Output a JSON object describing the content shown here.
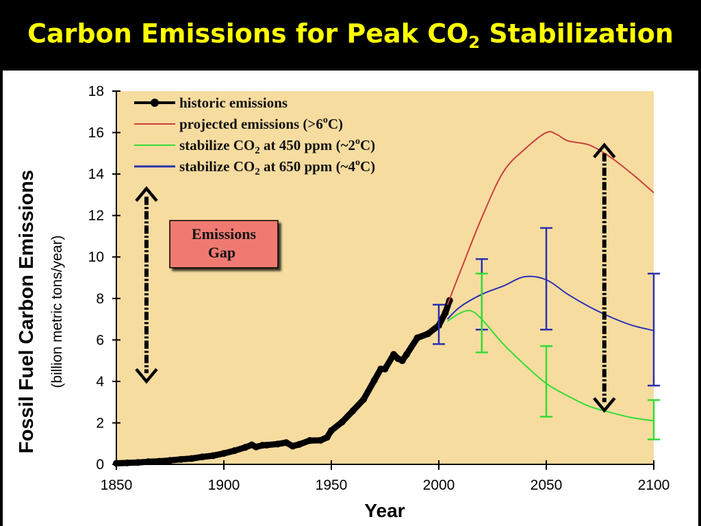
{
  "title": {
    "prefix": "Carbon Emissions for Peak CO",
    "sub": "2",
    "suffix": " Stabilization"
  },
  "annotation": {
    "gap_line1": "Emissions",
    "gap_line2": "Gap"
  },
  "colors": {
    "title": "#ffff00",
    "plot_bg": "#f7dca0",
    "historic": "#000000",
    "projected": "#c8403a",
    "s450": "#33dd33",
    "s650": "#2830b0",
    "gap_box": "#f07a72"
  },
  "chart_data": {
    "type": "line",
    "xlabel": "Year",
    "ylabel": "Fossil Fuel Carbon Emissions",
    "ylabel_sub": "(billion metric tons/year)",
    "xlim": [
      1850,
      2100
    ],
    "ylim": [
      0,
      18
    ],
    "xticks": [
      1850,
      1900,
      1950,
      2000,
      2050,
      2100
    ],
    "yticks": [
      0,
      2,
      4,
      6,
      8,
      10,
      12,
      14,
      16,
      18
    ],
    "grid": false,
    "legend_position": "top-left",
    "legend": [
      {
        "key": "historic",
        "label_prefix": "historic emissions",
        "label_sub": "",
        "label_suffix": ""
      },
      {
        "key": "projected",
        "label_prefix": "projected emissions (>6",
        "label_sup": "o",
        "label_suffix": "C)"
      },
      {
        "key": "s450",
        "label_prefix": "stabilize CO",
        "label_sub": "2",
        "label_mid": " at 450 ppm (~2",
        "label_sup": "o",
        "label_suffix": "C)"
      },
      {
        "key": "s650",
        "label_prefix": "stabilize CO",
        "label_sub": "2",
        "label_mid": " at 650 ppm (~4",
        "label_sup": "o",
        "label_suffix": "C)"
      }
    ],
    "series": [
      {
        "key": "historic",
        "name": "historic emissions",
        "points": [
          [
            1850,
            0.05
          ],
          [
            1855,
            0.07
          ],
          [
            1860,
            0.09
          ],
          [
            1865,
            0.13
          ],
          [
            1870,
            0.15
          ],
          [
            1875,
            0.19
          ],
          [
            1880,
            0.24
          ],
          [
            1885,
            0.28
          ],
          [
            1890,
            0.36
          ],
          [
            1895,
            0.42
          ],
          [
            1900,
            0.53
          ],
          [
            1905,
            0.66
          ],
          [
            1910,
            0.82
          ],
          [
            1913,
            0.94
          ],
          [
            1915,
            0.84
          ],
          [
            1918,
            0.92
          ],
          [
            1920,
            0.93
          ],
          [
            1925,
            0.98
          ],
          [
            1929,
            1.05
          ],
          [
            1932,
            0.88
          ],
          [
            1935,
            0.96
          ],
          [
            1940,
            1.15
          ],
          [
            1945,
            1.16
          ],
          [
            1948,
            1.3
          ],
          [
            1950,
            1.63
          ],
          [
            1955,
            2.04
          ],
          [
            1960,
            2.58
          ],
          [
            1965,
            3.13
          ],
          [
            1970,
            4.05
          ],
          [
            1973,
            4.6
          ],
          [
            1975,
            4.6
          ],
          [
            1979,
            5.3
          ],
          [
            1981,
            5.1
          ],
          [
            1983,
            5.0
          ],
          [
            1985,
            5.3
          ],
          [
            1990,
            6.1
          ],
          [
            1995,
            6.3
          ],
          [
            2000,
            6.7
          ],
          [
            2003,
            7.3
          ],
          [
            2005,
            7.9
          ]
        ]
      },
      {
        "key": "projected",
        "name": "projected emissions",
        "points": [
          [
            2004,
            7.7
          ],
          [
            2010,
            9.3
          ],
          [
            2020,
            11.9
          ],
          [
            2030,
            14.1
          ],
          [
            2040,
            15.2
          ],
          [
            2050,
            16.0
          ],
          [
            2055,
            15.9
          ],
          [
            2060,
            15.6
          ],
          [
            2070,
            15.4
          ],
          [
            2080,
            14.8
          ],
          [
            2090,
            14.0
          ],
          [
            2100,
            13.1
          ]
        ]
      },
      {
        "key": "s650",
        "name": "stabilize CO2 at 650 ppm",
        "points": [
          [
            2004,
            7.0
          ],
          [
            2010,
            7.6
          ],
          [
            2020,
            8.2
          ],
          [
            2030,
            8.6
          ],
          [
            2040,
            9.05
          ],
          [
            2050,
            8.9
          ],
          [
            2060,
            8.2
          ],
          [
            2070,
            7.6
          ],
          [
            2080,
            7.1
          ],
          [
            2090,
            6.7
          ],
          [
            2100,
            6.45
          ]
        ]
      },
      {
        "key": "s450",
        "name": "stabilize CO2 at 450 ppm",
        "points": [
          [
            2004,
            6.9
          ],
          [
            2010,
            7.3
          ],
          [
            2015,
            7.4
          ],
          [
            2020,
            7.0
          ],
          [
            2030,
            5.8
          ],
          [
            2040,
            4.8
          ],
          [
            2050,
            3.9
          ],
          [
            2060,
            3.3
          ],
          [
            2070,
            2.8
          ],
          [
            2080,
            2.5
          ],
          [
            2090,
            2.25
          ],
          [
            2100,
            2.1
          ]
        ]
      }
    ],
    "error_bars": [
      {
        "key": "s650",
        "x": 2000,
        "low": 5.8,
        "high": 7.7
      },
      {
        "key": "s650",
        "x": 2020,
        "low": 6.5,
        "high": 9.9
      },
      {
        "key": "s650",
        "x": 2050,
        "low": 6.5,
        "high": 11.4
      },
      {
        "key": "s650",
        "x": 2100,
        "low": 3.8,
        "high": 9.2
      },
      {
        "key": "s450",
        "x": 2020,
        "low": 5.4,
        "high": 9.2
      },
      {
        "key": "s450",
        "x": 2050,
        "low": 2.3,
        "high": 5.7
      },
      {
        "key": "s450",
        "x": 2100,
        "low": 1.2,
        "high": 3.1
      }
    ],
    "gap_arrows": [
      {
        "x": 1864,
        "from": 4.0,
        "to": 13.3
      },
      {
        "x": 2077,
        "from": 2.6,
        "to": 15.4
      }
    ]
  }
}
